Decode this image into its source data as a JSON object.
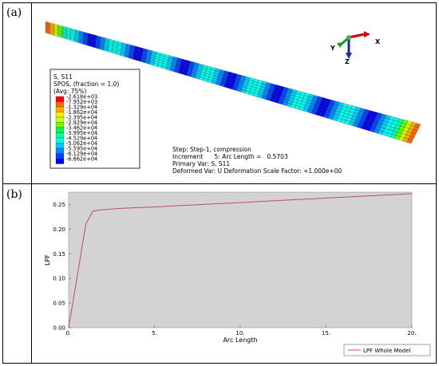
{
  "panels": {
    "a_label": "(a)",
    "b_label": "(b)"
  },
  "contour_legend": {
    "title_lines": [
      "S, S11",
      "SPOS, (fraction = 1.0)",
      "(Avg: 75%)"
    ],
    "values": [
      "-2.618e+03",
      "-7.952e+03",
      "-1.329e+04",
      "-1.862e+04",
      "-2.395e+04",
      "-2.929e+04",
      "-3.462e+04",
      "-3.995e+04",
      "-4.529e+04",
      "-5.062e+04",
      "-5.595e+04",
      "-6.129e+04",
      "-6.662e+04"
    ],
    "colors": [
      "#ff0000",
      "#ff6600",
      "#ffaa00",
      "#ffee00",
      "#ccff00",
      "#66ff00",
      "#00ff44",
      "#00ffaa",
      "#00ffee",
      "#00ccff",
      "#0088ff",
      "#0044ff",
      "#0000ee"
    ]
  },
  "step_info": {
    "lines": [
      "Step: Step-1, compression",
      "Increment      5: Arc Length =   0.5703",
      "Primary Var: S, S11",
      "Deformed Var: U   Deformation Scale Factor: +1.000e+00"
    ]
  },
  "triad": {
    "x_label": "X",
    "y_label": "Y",
    "z_label": "Z"
  },
  "chart_data": {
    "type": "line",
    "xlabel": "Arc Length",
    "ylabel": "LPF",
    "xlim": [
      0,
      20
    ],
    "ylim": [
      0,
      0.275
    ],
    "x_ticks": [
      "0.",
      "5.",
      "10.",
      "15.",
      "20."
    ],
    "y_ticks": [
      "0.00",
      "0.05",
      "0.10",
      "0.15",
      "0.20",
      "0.25"
    ],
    "grid": false,
    "legend_position": "bottom-right",
    "series": [
      {
        "name": "LPF Whole Model",
        "color": "#c0504d",
        "x": [
          0,
          0.5,
          1.0,
          1.4,
          1.8,
          3.0,
          5.0,
          10.0,
          15.0,
          20.0
        ],
        "y": [
          0,
          0.105,
          0.21,
          0.236,
          0.239,
          0.242,
          0.245,
          0.254,
          0.263,
          0.272
        ]
      }
    ]
  }
}
